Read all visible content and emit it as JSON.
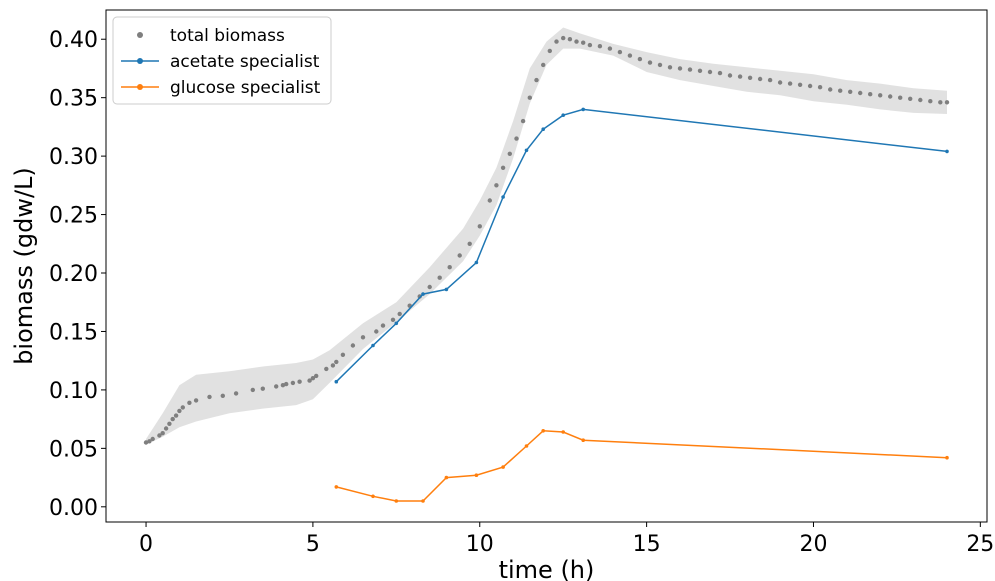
{
  "chart_data": {
    "type": "line",
    "xlabel": "time (h)",
    "ylabel": "biomass (gdw/L)",
    "xlim": [
      -1.2,
      25.2
    ],
    "ylim": [
      -0.013,
      0.425
    ],
    "xticks": [
      0,
      5,
      10,
      15,
      20,
      25
    ],
    "xtick_labels": [
      "0",
      "5",
      "10",
      "15",
      "20",
      "25"
    ],
    "yticks": [
      0.0,
      0.05,
      0.1,
      0.15,
      0.2,
      0.25,
      0.3,
      0.35,
      0.4
    ],
    "ytick_labels": [
      "0.00",
      "0.05",
      "0.10",
      "0.15",
      "0.20",
      "0.25",
      "0.30",
      "0.35",
      "0.40"
    ],
    "grid": false,
    "legend_position": "top-left",
    "series": [
      {
        "name": "total biomass",
        "kind": "scatter",
        "color": "#7f7f7f",
        "x": [
          0.0,
          0.1,
          0.2,
          0.4,
          0.5,
          0.6,
          0.7,
          0.8,
          0.9,
          1.0,
          1.1,
          1.3,
          1.5,
          1.9,
          2.3,
          2.7,
          3.2,
          3.5,
          3.9,
          4.1,
          4.2,
          4.4,
          4.6,
          4.9,
          5.0,
          5.1,
          5.4,
          5.6,
          5.7,
          5.9,
          6.2,
          6.5,
          6.9,
          7.1,
          7.4,
          7.6,
          7.9,
          8.2,
          8.5,
          8.8,
          9.1,
          9.4,
          9.7,
          10.0,
          10.3,
          10.5,
          10.7,
          10.9,
          11.1,
          11.3,
          11.5,
          11.7,
          11.9,
          12.1,
          12.3,
          12.5,
          12.7,
          12.9,
          13.1,
          13.3,
          13.6,
          13.9,
          14.2,
          14.5,
          14.8,
          15.1,
          15.4,
          15.7,
          16.0,
          16.3,
          16.6,
          16.9,
          17.2,
          17.5,
          17.8,
          18.1,
          18.4,
          18.7,
          19.0,
          19.3,
          19.6,
          19.9,
          20.2,
          20.5,
          20.8,
          21.1,
          21.4,
          21.7,
          22.0,
          22.3,
          22.6,
          22.9,
          23.2,
          23.5,
          23.8,
          24.0
        ],
        "values": [
          0.055,
          0.056,
          0.058,
          0.061,
          0.063,
          0.067,
          0.071,
          0.075,
          0.078,
          0.082,
          0.085,
          0.089,
          0.091,
          0.094,
          0.095,
          0.097,
          0.1,
          0.101,
          0.103,
          0.104,
          0.105,
          0.106,
          0.107,
          0.108,
          0.11,
          0.112,
          0.118,
          0.121,
          0.124,
          0.13,
          0.138,
          0.145,
          0.15,
          0.155,
          0.16,
          0.165,
          0.172,
          0.18,
          0.188,
          0.196,
          0.205,
          0.215,
          0.225,
          0.24,
          0.262,
          0.275,
          0.29,
          0.302,
          0.315,
          0.33,
          0.35,
          0.365,
          0.378,
          0.39,
          0.398,
          0.401,
          0.4,
          0.398,
          0.397,
          0.395,
          0.394,
          0.392,
          0.389,
          0.386,
          0.383,
          0.38,
          0.378,
          0.376,
          0.375,
          0.374,
          0.373,
          0.372,
          0.371,
          0.369,
          0.368,
          0.367,
          0.366,
          0.365,
          0.363,
          0.362,
          0.361,
          0.36,
          0.359,
          0.357,
          0.356,
          0.355,
          0.354,
          0.353,
          0.352,
          0.351,
          0.35,
          0.349,
          0.348,
          0.347,
          0.346,
          0.346
        ],
        "band_x": [
          0.0,
          0.5,
          1.0,
          1.5,
          2.5,
          3.5,
          4.5,
          5.0,
          5.5,
          6.5,
          7.5,
          8.5,
          9.5,
          10.0,
          10.5,
          11.0,
          11.5,
          12.0,
          12.5,
          13.0,
          14.0,
          15.0,
          16.0,
          17.0,
          18.0,
          19.0,
          20.0,
          21.0,
          22.0,
          23.0,
          24.0
        ],
        "band_upper": [
          0.058,
          0.08,
          0.104,
          0.113,
          0.116,
          0.12,
          0.123,
          0.126,
          0.134,
          0.157,
          0.175,
          0.205,
          0.238,
          0.262,
          0.29,
          0.33,
          0.375,
          0.398,
          0.41,
          0.405,
          0.396,
          0.389,
          0.383,
          0.379,
          0.376,
          0.373,
          0.37,
          0.365,
          0.362,
          0.358,
          0.356
        ],
        "band_lower": [
          0.053,
          0.06,
          0.068,
          0.073,
          0.08,
          0.084,
          0.087,
          0.092,
          0.106,
          0.135,
          0.158,
          0.182,
          0.21,
          0.232,
          0.258,
          0.298,
          0.345,
          0.378,
          0.392,
          0.392,
          0.386,
          0.372,
          0.365,
          0.36,
          0.355,
          0.352,
          0.347,
          0.344,
          0.34,
          0.337,
          0.336
        ]
      },
      {
        "name": "acetate specialist",
        "kind": "line",
        "color": "#1f77b4",
        "x": [
          5.7,
          6.8,
          7.5,
          8.3,
          9.0,
          9.9,
          10.7,
          11.4,
          11.9,
          12.5,
          13.1,
          24.0
        ],
        "values": [
          0.107,
          0.138,
          0.157,
          0.182,
          0.186,
          0.209,
          0.265,
          0.305,
          0.323,
          0.335,
          0.34,
          0.304
        ]
      },
      {
        "name": "glucose specialist",
        "kind": "line",
        "color": "#ff7f0e",
        "x": [
          5.7,
          6.8,
          7.5,
          8.3,
          9.0,
          9.9,
          10.7,
          11.4,
          11.9,
          12.5,
          13.1,
          24.0
        ],
        "values": [
          0.017,
          0.009,
          0.005,
          0.005,
          0.025,
          0.027,
          0.034,
          0.052,
          0.065,
          0.064,
          0.057,
          0.042
        ]
      }
    ]
  }
}
